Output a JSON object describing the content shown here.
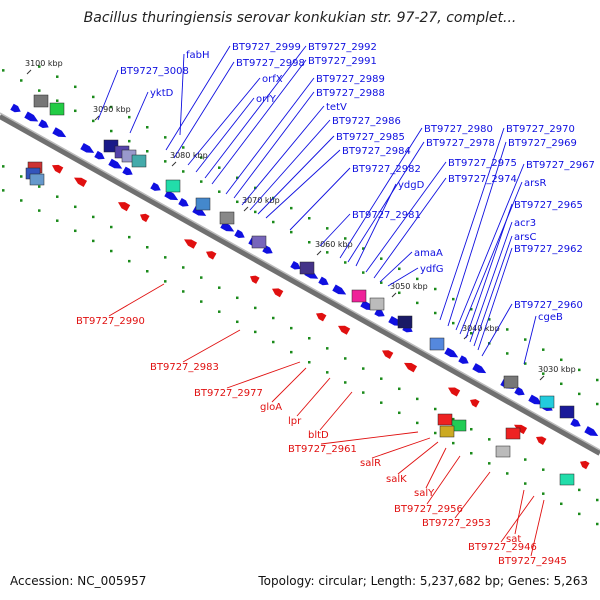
{
  "title": "Bacillus thuringiensis serovar konkukian str. 97-27, complet...",
  "footer": {
    "accession": "Accession: NC_005957",
    "topology": "Topology: circular; Length: 5,237,682 bp; Genes: 5,263"
  },
  "colors": {
    "forward": "#1010e0",
    "reverse": "#e01010",
    "backbone": "#6e6e6e",
    "tick": "#1a8a1a"
  },
  "ticks": [
    "3100 kbp",
    "3090 kbp",
    "3080 kbp",
    "3070 kbp",
    "3060 kbp",
    "3050 kbp",
    "3040 kbp",
    "3030 kbp"
  ],
  "forward_labels": [
    "fabH",
    "BT9727_3008",
    "yktD",
    "BT9727_2999",
    "BT9727_2998",
    "orfX",
    "orfY",
    "BT9727_2992",
    "BT9727_2991",
    "BT9727_2989",
    "BT9727_2988",
    "tetV",
    "BT9727_2986",
    "BT9727_2985",
    "BT9727_2984",
    "BT9727_2982",
    "BT9727_2981",
    "BT9727_2980",
    "BT9727_2978",
    "ydgD",
    "BT9727_2975",
    "BT9727_2974",
    "amaA",
    "ydfG",
    "BT9727_2970",
    "BT9727_2969",
    "BT9727_2967",
    "arsR",
    "BT9727_2965",
    "acr3",
    "arsC",
    "BT9727_2962",
    "BT9727_2960",
    "cgeB"
  ],
  "reverse_labels": [
    "BT9727_2990",
    "BT9727_2983",
    "BT9727_2977",
    "gloA",
    "lpr",
    "bltD",
    "BT9727_2961",
    "salR",
    "salK",
    "salY",
    "BT9727_2956",
    "BT9727_2953",
    "sat",
    "BT9727_2946",
    "BT9727_2945"
  ]
}
